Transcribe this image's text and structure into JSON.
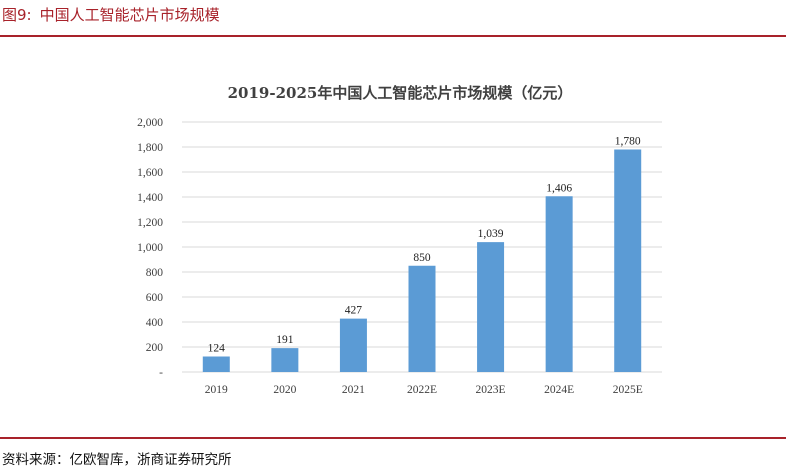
{
  "figure": {
    "caption_number": "图9:",
    "caption_title": "中国人工智能芯片市场规模",
    "source": "资料来源：亿欧智库，浙商证券研究所"
  },
  "chart_data": {
    "type": "bar",
    "title": "2019-2025年中国人工智能芯片市场规模（亿元）",
    "categories": [
      "2019",
      "2020",
      "2021",
      "2022E",
      "2023E",
      "2024E",
      "2025E"
    ],
    "values": [
      124,
      191,
      427,
      850,
      1039,
      1406,
      1780
    ],
    "value_labels": [
      "124",
      "191",
      "427",
      "850",
      "1,039",
      "1,406",
      "1,780"
    ],
    "ylim": [
      0,
      2000
    ],
    "y_ticks": [
      0,
      200,
      400,
      600,
      800,
      1000,
      1200,
      1400,
      1600,
      1800,
      2000
    ],
    "y_tick_labels": [
      "-",
      "200",
      "400",
      "600",
      "800",
      "1,000",
      "1,200",
      "1,400",
      "1,600",
      "1,800",
      "2,000"
    ],
    "xlabel": "",
    "ylabel": "",
    "grid": true,
    "legend": "none",
    "bar_color": "#5b9bd5"
  }
}
